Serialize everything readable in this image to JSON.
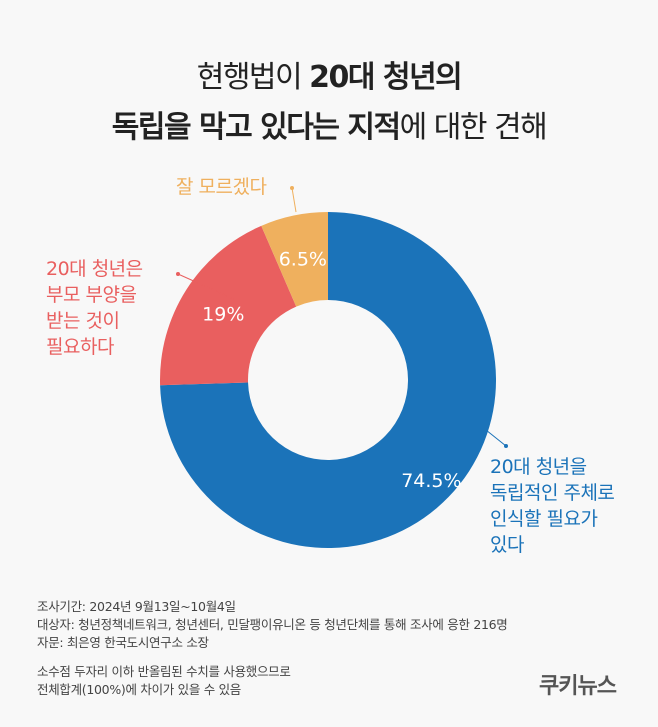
{
  "title": {
    "line1_normal": "현행법이 ",
    "line1_bold": "20대 청년의",
    "line2_bold": "독립을 막고 있다는 지적",
    "line2_normal": "에 대한 견해"
  },
  "chart_data": {
    "type": "pie",
    "variant": "donut",
    "start": "top-clockwise",
    "slices": [
      {
        "label": "20대 청년을 독립적인 주체로 인식할 필요가 있다",
        "label_lines": [
          "20대 청년을",
          "독립적인 주체로",
          "인식할 필요가",
          "있다"
        ],
        "value": 74.5,
        "value_label": "74.5%",
        "color": "#1b73b9"
      },
      {
        "label": "20대 청년은 부모 부양을 받는 것이 필요하다",
        "label_lines": [
          "20대 청년은",
          "부모 부양을",
          "받는 것이",
          "필요하다"
        ],
        "value": 19,
        "value_label": "19%",
        "color": "#e95f5f"
      },
      {
        "label": "잘 모르겠다",
        "label_lines": [
          "잘 모르겠다"
        ],
        "value": 6.5,
        "value_label": "6.5%",
        "color": "#efb05e"
      }
    ]
  },
  "footer": {
    "lines": [
      "조사기간: 2024년 9월13일~10월4일",
      "대상자: 청년정책네트워크, 청년센터, 민달팽이유니온 등 청년단체를 통해 조사에 응한 216명",
      "자문: 최은영 한국도시연구소 소장"
    ],
    "notes": [
      "소수점 두자리 이하 반올림된 수치를 사용했으므로",
      "전체합계(100%)에 차이가 있을 수 있음"
    ]
  },
  "logo": "쿠키뉴스"
}
